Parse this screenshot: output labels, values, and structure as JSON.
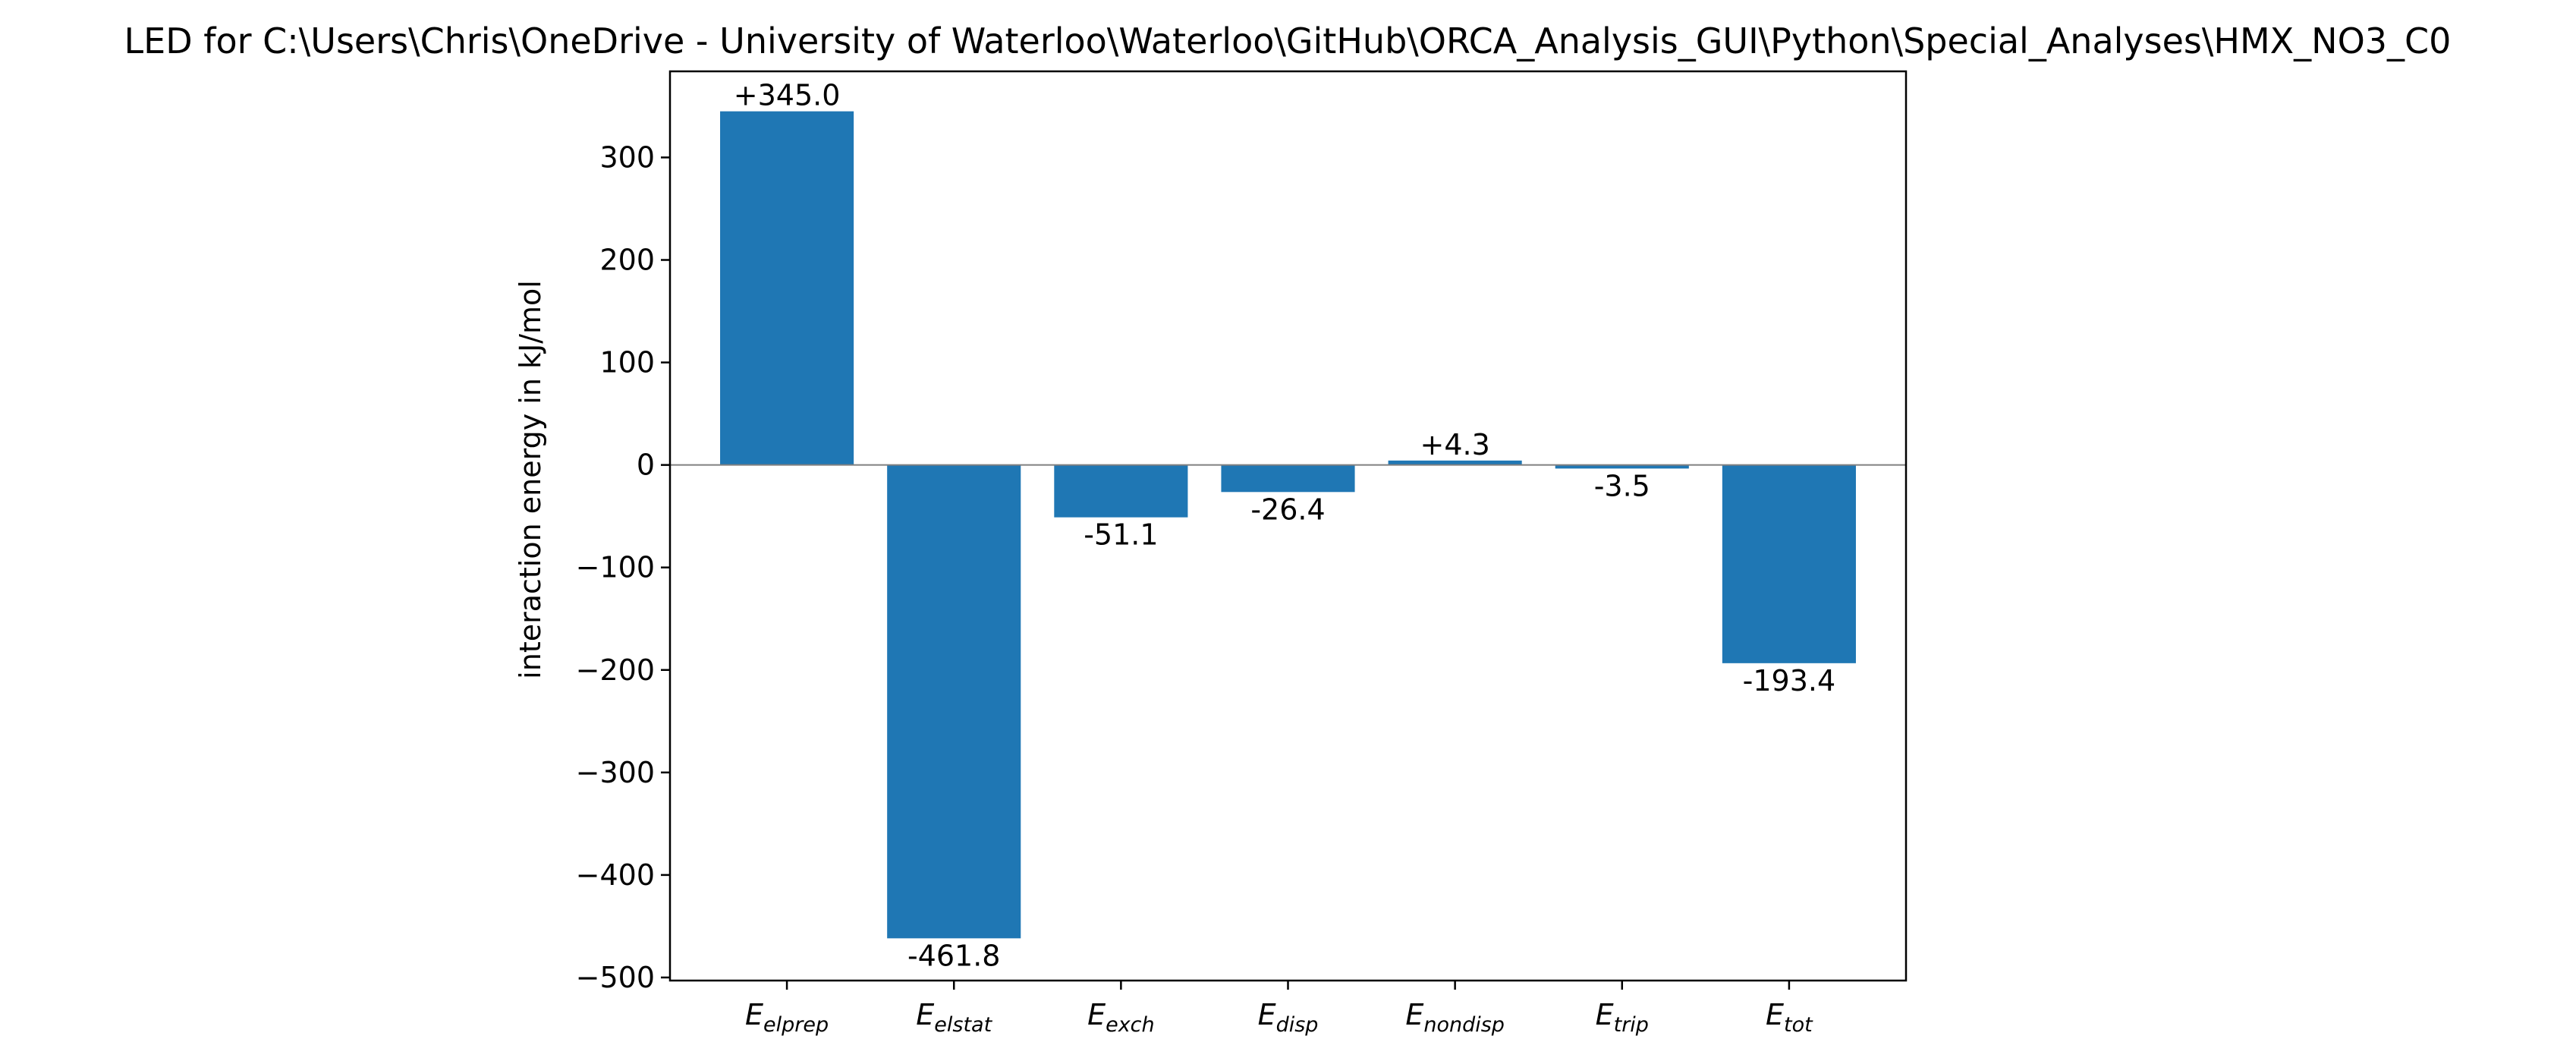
{
  "chart_data": {
    "type": "bar",
    "title": "LED for C:\\Users\\Chris\\OneDrive - University of Waterloo\\Waterloo\\GitHub\\ORCA_Analysis_GUI\\Python\\Special_Analyses\\HMX_NO3_C0",
    "xlabel": "",
    "ylabel": "interaction energy in kJ/mol",
    "categories": [
      {
        "main": "E",
        "sub": "elprep"
      },
      {
        "main": "E",
        "sub": "elstat"
      },
      {
        "main": "E",
        "sub": "exch"
      },
      {
        "main": "E",
        "sub": "disp"
      },
      {
        "main": "E",
        "sub": "nondisp"
      },
      {
        "main": "E",
        "sub": "trip"
      },
      {
        "main": "E",
        "sub": "tot"
      }
    ],
    "values": [
      345.0,
      -461.8,
      -51.1,
      -26.4,
      4.3,
      -3.5,
      -193.4
    ],
    "data_labels": [
      "+345.0",
      "-461.8",
      "-51.1",
      "-26.4",
      "+4.3",
      "-3.5",
      "-193.4"
    ],
    "yticks": [
      300,
      200,
      100,
      0,
      -100,
      -200,
      -300,
      -400,
      -500
    ],
    "ytick_labels": [
      "300",
      "200",
      "100",
      "0",
      "−100",
      "−200",
      "−300",
      "−400",
      "−500"
    ],
    "ylim": [
      -503,
      384
    ],
    "zero_line": true,
    "grid": false,
    "legend": "none",
    "bar_color": "#1f77b4",
    "zero_line_color": "#808080"
  }
}
